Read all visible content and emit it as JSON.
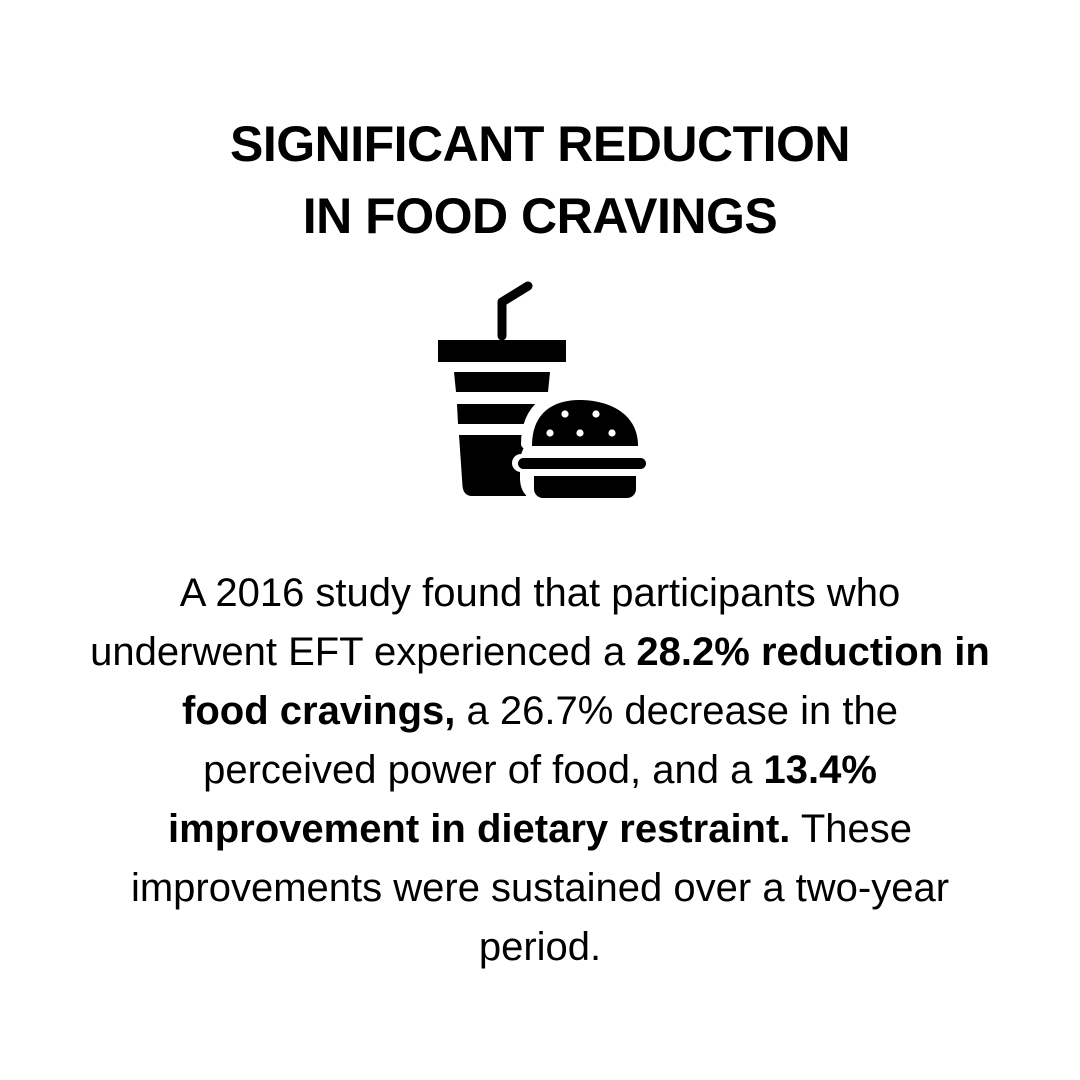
{
  "title": {
    "line1": "SIGNIFICANT REDUCTION",
    "line2": "IN FOOD CRAVINGS"
  },
  "icon": {
    "name": "fast-food-icon",
    "color": "#000000"
  },
  "body": {
    "p1": "A 2016 study found that participants who underwent EFT experienced a ",
    "b1": "28.2% reduction in food cravings,",
    "p2": " a 26.7% decrease in the perceived power of food, and a ",
    "b2": "13.4% improvement in dietary restraint.",
    "p3": " These improvements were sustained over a two-year period."
  }
}
